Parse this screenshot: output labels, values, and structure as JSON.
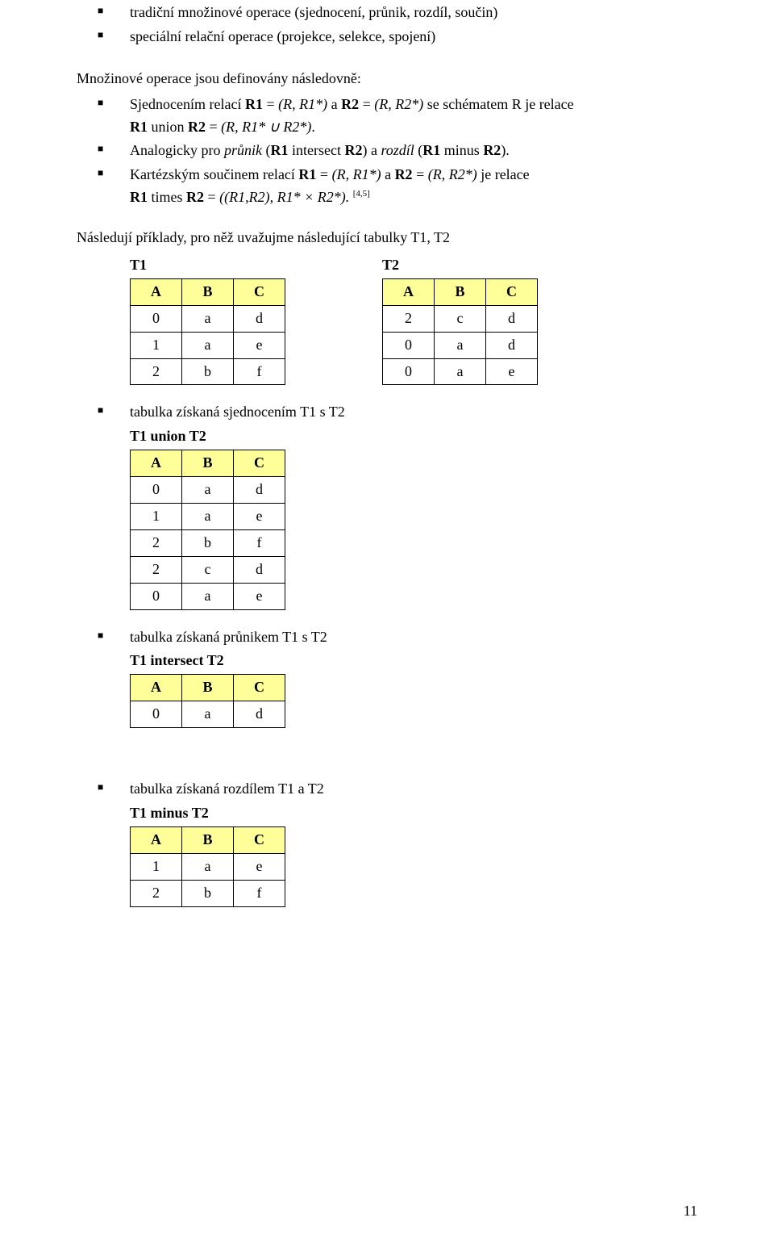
{
  "header_cell_bg": "#ffff99",
  "bullets_top": [
    "tradiční množinové operace (sjednocení, průnik, rozdíl, součin)",
    "speciální relační operace (projekce, selekce, spojení)"
  ],
  "intro_para": "Množinové operace jsou definovány následovně:",
  "def_items": [
    {
      "line1_parts": [
        "Sjednocením relací ",
        "R1",
        " = ",
        "(R, R1*)",
        " a ",
        "R2",
        " = ",
        "(R, R2*)",
        " se schématem R je relace"
      ],
      "line2_parts": [
        "R1",
        " union ",
        "R2",
        " = ",
        "(R, R1* ∪ R2*)",
        "."
      ]
    },
    {
      "line1_parts": [
        "Analogicky pro ",
        "průnik",
        " (",
        "R1",
        " intersect ",
        "R2",
        ") a ",
        "rozdíl",
        " (",
        "R1",
        " minus ",
        "R2",
        ")."
      ]
    },
    {
      "line1_parts": [
        "Kartézským součinem relací ",
        "R1",
        " = ",
        "(R, R1*)",
        " a ",
        "R2",
        " = ",
        "(R, R2*)",
        " je relace"
      ],
      "line2_parts": [
        "R1",
        " times ",
        "R2",
        " = ",
        "((R1,R2), R1* × R2*).",
        " "
      ],
      "sup": "[4,5]"
    }
  ],
  "followup": "Následují příklady, pro něž uvažujme následující tabulky T1, T2",
  "tables": {
    "T1": {
      "title": "T1",
      "cols": [
        "A",
        "B",
        "C"
      ],
      "rows": [
        [
          "0",
          "a",
          "d"
        ],
        [
          "1",
          "a",
          "e"
        ],
        [
          "2",
          "b",
          "f"
        ]
      ]
    },
    "T2": {
      "title": "T2",
      "cols": [
        "A",
        "B",
        "C"
      ],
      "rows": [
        [
          "2",
          "c",
          "d"
        ],
        [
          "0",
          "a",
          "d"
        ],
        [
          "0",
          "a",
          "e"
        ]
      ]
    },
    "union": {
      "title": "T1 union T2",
      "cols": [
        "A",
        "B",
        "C"
      ],
      "rows": [
        [
          "0",
          "a",
          "d"
        ],
        [
          "1",
          "a",
          "e"
        ],
        [
          "2",
          "b",
          "f"
        ],
        [
          "2",
          "c",
          "d"
        ],
        [
          "0",
          "a",
          "e"
        ]
      ]
    },
    "intersect": {
      "title": "T1 intersect T2",
      "cols": [
        "A",
        "B",
        "C"
      ],
      "rows": [
        [
          "0",
          "a",
          "d"
        ]
      ]
    },
    "minus": {
      "title": "T1 minus T2",
      "cols": [
        "A",
        "B",
        "C"
      ],
      "rows": [
        [
          "1",
          "a",
          "e"
        ],
        [
          "2",
          "b",
          "f"
        ]
      ]
    }
  },
  "section_bullets": {
    "union": "tabulka získaná sjednocením T1 s T2",
    "intersect": "tabulka získaná průnikem T1 s T2",
    "minus": "tabulka získaná rozdílem T1 a T2"
  },
  "page_number": "11"
}
